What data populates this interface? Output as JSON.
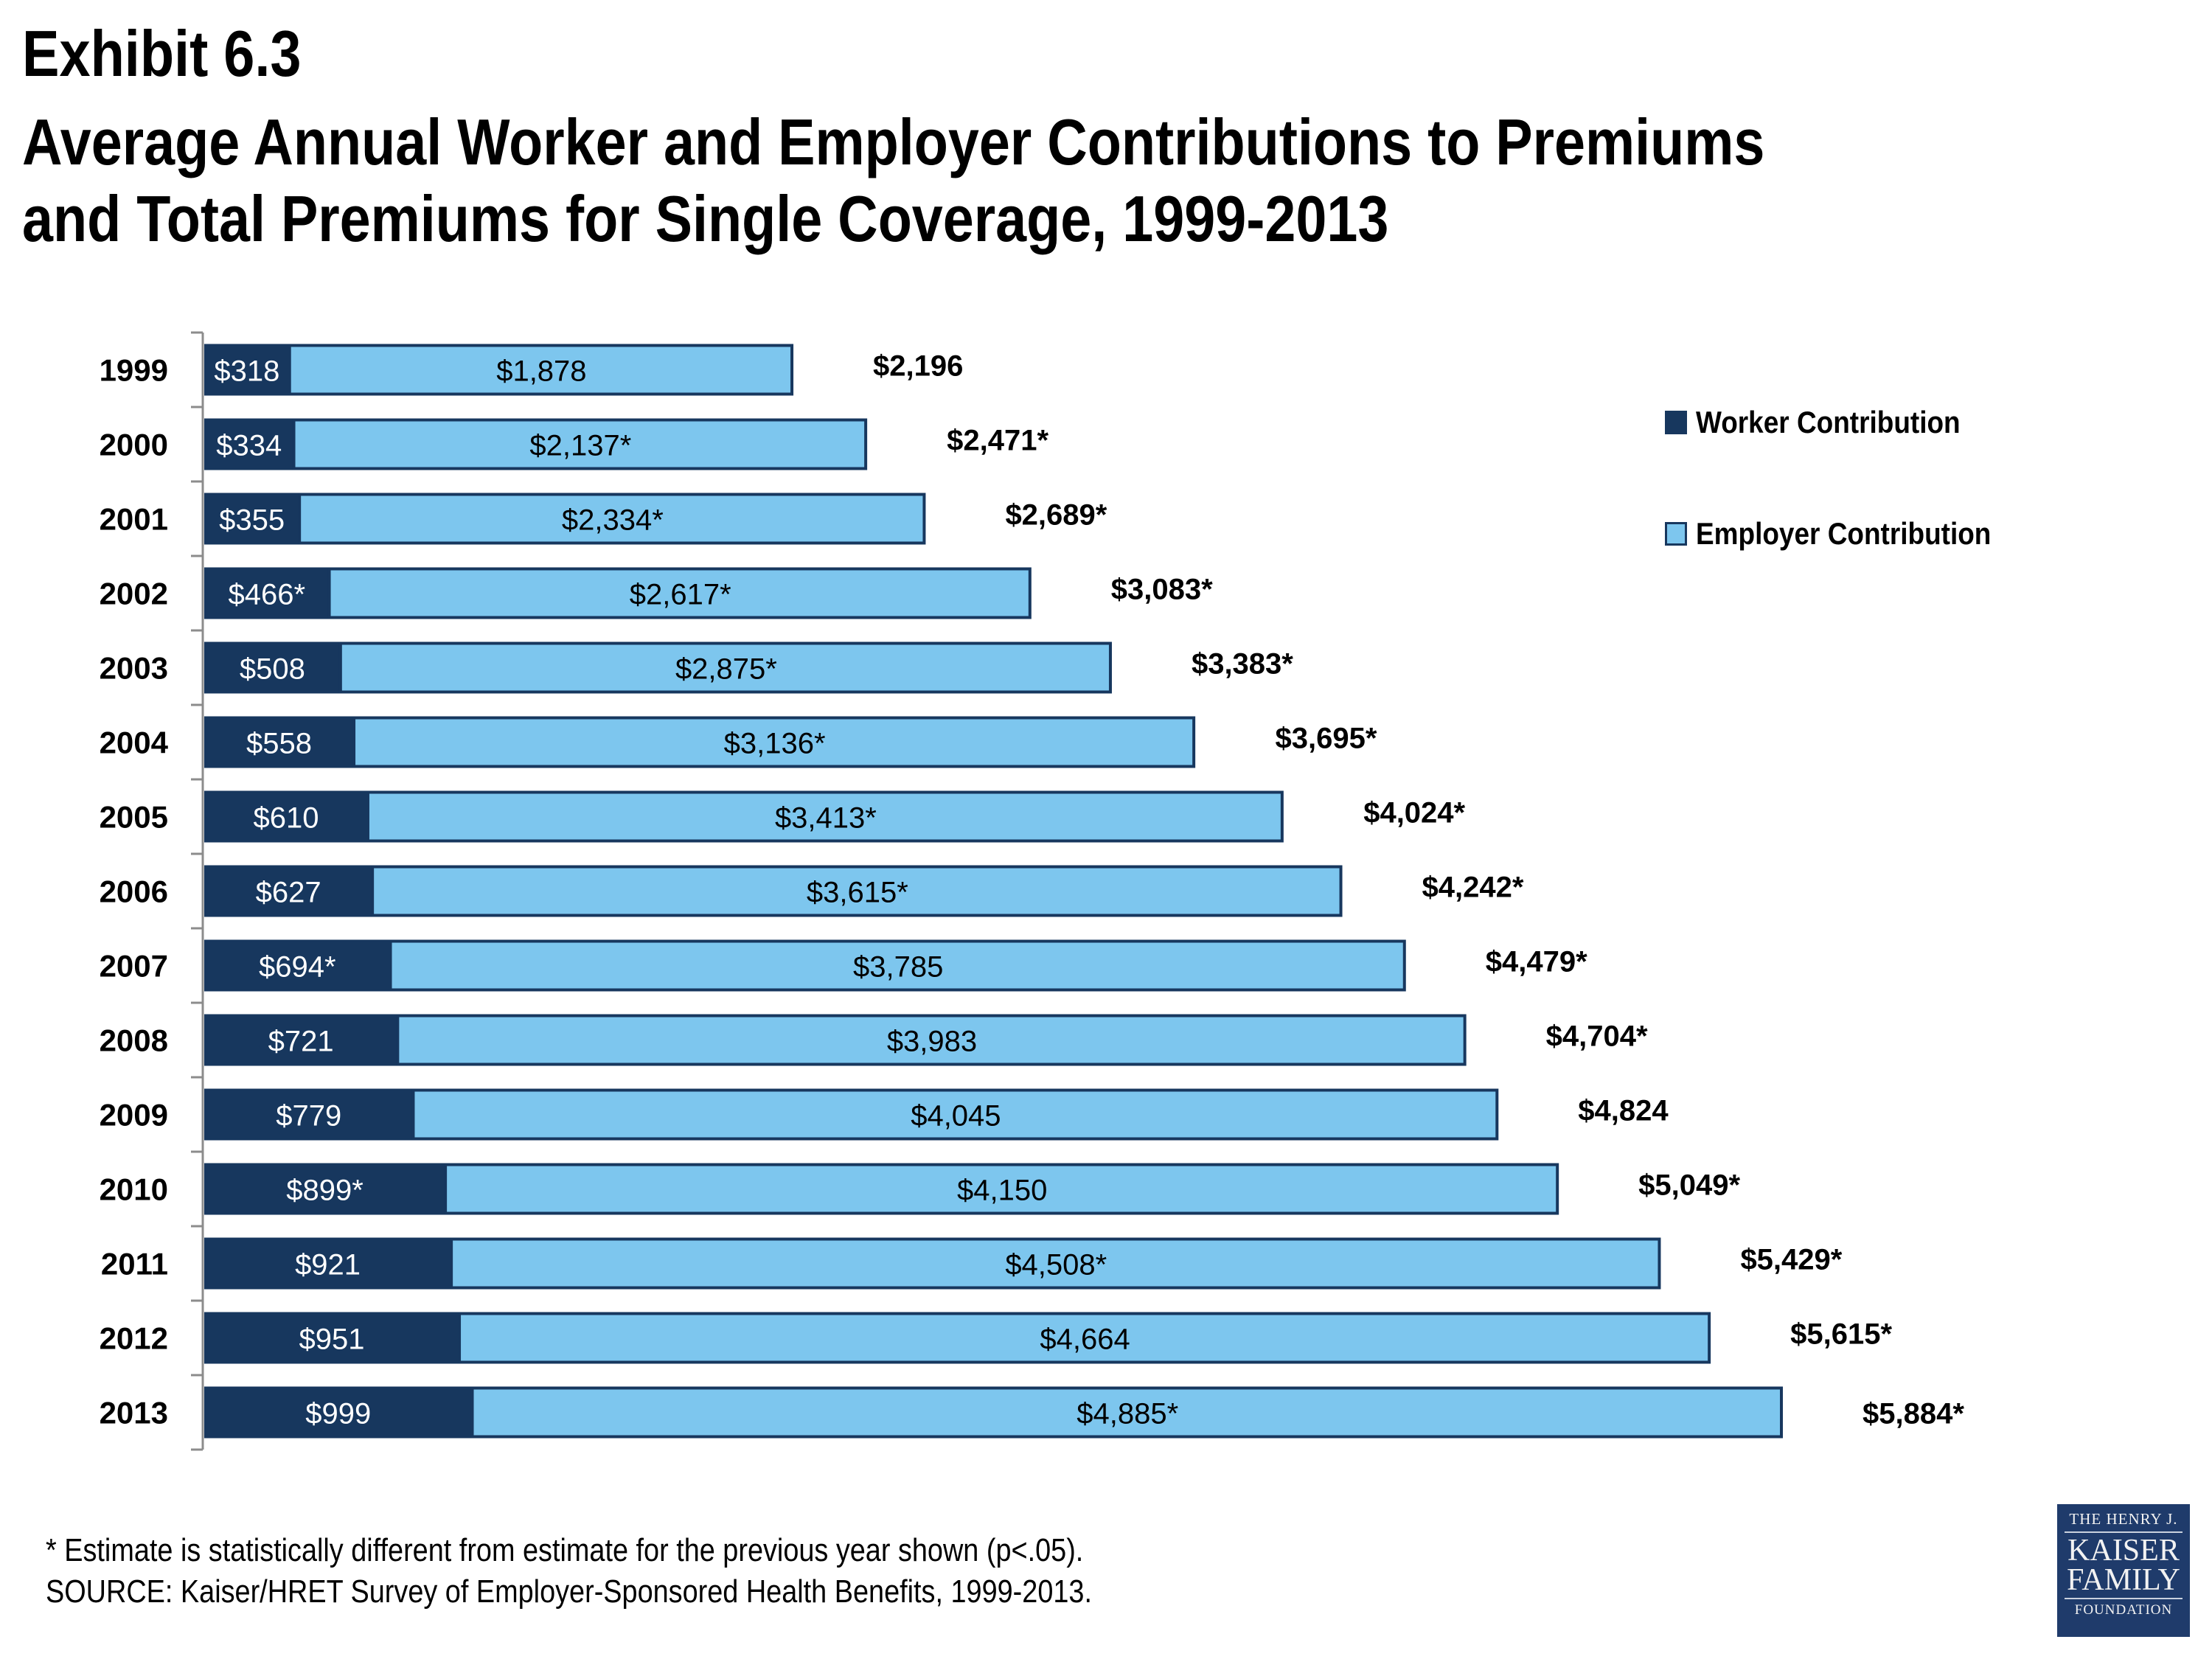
{
  "header": {
    "exhibit": "Exhibit 6.3",
    "title_line1": "Average Annual Worker and Employer Contributions to Premiums",
    "title_line2": "and Total Premiums for Single Coverage, 1999-2013"
  },
  "colors": {
    "worker": "#17375e",
    "employer": "#7dc6ee",
    "axis": "#8c8c8c",
    "logo_bg": "#1f3b6b"
  },
  "chart_data": {
    "type": "bar",
    "orientation": "horizontal",
    "stacked": true,
    "title": "Average Annual Worker and Employer Contributions to Premiums and Total Premiums for Single Coverage, 1999-2013",
    "xlabel": "",
    "ylabel": "",
    "xlim": [
      0,
      5884
    ],
    "grid": false,
    "legend_position": "top-right",
    "categories": [
      "1999",
      "2000",
      "2001",
      "2002",
      "2003",
      "2004",
      "2005",
      "2006",
      "2007",
      "2008",
      "2009",
      "2010",
      "2011",
      "2012",
      "2013"
    ],
    "series": [
      {
        "name": "Worker Contribution",
        "values": [
          318,
          334,
          355,
          466,
          508,
          558,
          610,
          627,
          694,
          721,
          779,
          899,
          921,
          951,
          999
        ],
        "labels": [
          "$318",
          "$334",
          "$355",
          "$466*",
          "$508",
          "$558",
          "$610",
          "$627",
          "$694*",
          "$721",
          "$779",
          "$899*",
          "$921",
          "$951",
          "$999"
        ]
      },
      {
        "name": "Employer Contribution",
        "values": [
          1878,
          2137,
          2334,
          2617,
          2875,
          3136,
          3413,
          3615,
          3785,
          3983,
          4045,
          4150,
          4508,
          4664,
          4885
        ],
        "labels": [
          "$1,878",
          "$2,137*",
          "$2,334*",
          "$2,617*",
          "$2,875*",
          "$3,136*",
          "$3,413*",
          "$3,615*",
          "$3,785",
          "$3,983",
          "$4,045",
          "$4,150",
          "$4,508*",
          "$4,664",
          "$4,885*"
        ]
      }
    ],
    "totals": {
      "values": [
        2196,
        2471,
        2689,
        3083,
        3383,
        3695,
        4024,
        4242,
        4479,
        4704,
        4824,
        5049,
        5429,
        5615,
        5884
      ],
      "labels": [
        "$2,196",
        "$2,471*",
        "$2,689*",
        "$3,083*",
        "$3,383*",
        "$3,695*",
        "$4,024*",
        "$4,242*",
        "$4,479*",
        "$4,704*",
        "$4,824",
        "$5,049*",
        "$5,429*",
        "$5,615*",
        "$5,884*"
      ]
    }
  },
  "legend": {
    "items": [
      {
        "label": "Worker Contribution"
      },
      {
        "label": "Employer Contribution"
      }
    ]
  },
  "footnotes": {
    "significance": "* Estimate is statistically different from estimate for the previous year shown (p<.05).",
    "source": "SOURCE:  Kaiser/HRET Survey of Employer-Sponsored Health Benefits, 1999-2013."
  },
  "logo": {
    "line1": "THE HENRY J.",
    "line2": "KAISER",
    "line3": "FAMILY",
    "line4": "FOUNDATION"
  }
}
